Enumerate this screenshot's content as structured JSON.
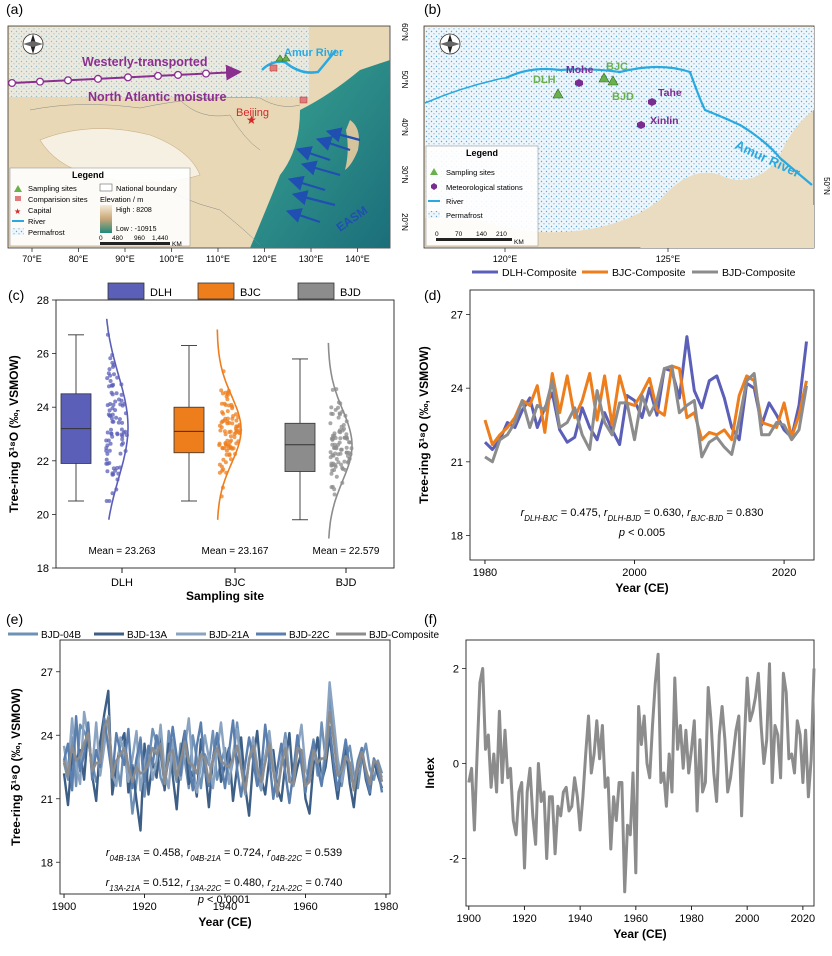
{
  "panels": {
    "a": "(a)",
    "b": "(b)",
    "c": "(c)",
    "d": "(d)",
    "e": "(e)",
    "f": "(f)"
  },
  "map_a": {
    "x_ticks": [
      "70°E",
      "80°E",
      "90°E",
      "100°E",
      "110°E",
      "120°E",
      "130°E",
      "140°E"
    ],
    "y_ticks": [
      "60°N",
      "50°N",
      "40°N",
      "30°N",
      "20°N"
    ],
    "labels": {
      "westerly_1": "Westerly-transported",
      "westerly_2": "North Atlantic moisture",
      "amur": "Amur River",
      "beijing": "Beijing",
      "easm": "EASM"
    },
    "legend": {
      "title": "Legend",
      "items": [
        "Sampling sites",
        "Comparision sites",
        "Capital",
        "River",
        "Permafrost",
        "National boundary"
      ],
      "elevation_title": "Elevation / m",
      "high": "High : 8208",
      "low": "Low : -10915",
      "scale": [
        "0",
        "480",
        "960",
        "1,440"
      ],
      "scale_unit": "KM"
    },
    "colors": {
      "sea": "#2c9a86",
      "land": "#e9d8b6",
      "river": "#29a9e0",
      "westerly": "#8b2f8f",
      "easm": "#1f4fb0"
    }
  },
  "map_b": {
    "x_ticks": [
      "120°E",
      "125°E"
    ],
    "y_ticks": [
      "50°N"
    ],
    "sites": [
      "DLH",
      "BJC",
      "BJD"
    ],
    "stations": [
      "Mohe",
      "Tahe",
      "Xinlin"
    ],
    "amur": "Amur River",
    "legend": {
      "title": "Legend",
      "items": [
        "Sampling sites",
        "Meteorological stations",
        "River",
        "Permafrost"
      ],
      "scale": [
        "0",
        "70",
        "140",
        "210"
      ],
      "scale_unit": "KM"
    }
  },
  "chart_data": [
    {
      "panel": "c",
      "type": "box",
      "categories": [
        "DLH",
        "BJC",
        "BJD"
      ],
      "legend": [
        "DLH",
        "BJC",
        "BJD"
      ],
      "ylabel": "Tree-ring δ¹⁸O (‰, VSMOW)",
      "xlabel": "Sampling site",
      "ylim": [
        18,
        28
      ],
      "y_ticks": [
        18,
        20,
        22,
        24,
        26,
        28
      ],
      "boxes": [
        {
          "min": 20.5,
          "q1": 21.9,
          "median": 23.2,
          "q3": 24.5,
          "max": 26.7,
          "mean": 23.263
        },
        {
          "min": 20.5,
          "q1": 22.3,
          "median": 23.1,
          "q3": 24.0,
          "max": 26.3,
          "mean": 23.167
        },
        {
          "min": 19.8,
          "q1": 21.6,
          "median": 22.6,
          "q3": 23.4,
          "max": 25.8,
          "mean": 22.579
        }
      ],
      "mean_labels": [
        "Mean = 23.263",
        "Mean = 23.167",
        "Mean = 22.579"
      ],
      "colors": [
        "#5b5fb8",
        "#ee7d1c",
        "#8c8c8c"
      ]
    },
    {
      "panel": "d",
      "type": "line",
      "ylabel": "Tree-ring δ¹⁸O (‰, VSMOW)",
      "xlabel": "Year (CE)",
      "xlim": [
        1978,
        2024
      ],
      "ylim": [
        17,
        28
      ],
      "x_ticks": [
        1980,
        2000,
        2020
      ],
      "y_ticks": [
        18,
        21,
        24,
        27
      ],
      "series": [
        {
          "name": "DLH-Composite",
          "color": "#5b5fb8",
          "x_start": 1980,
          "values": [
            21.8,
            21.5,
            21.9,
            22.6,
            22.4,
            23.1,
            23.6,
            22.4,
            23.2,
            23.8,
            22.3,
            21.8,
            22.0,
            23.2,
            22.4,
            21.9,
            23.0,
            22.3,
            21.7,
            23.7,
            23.5,
            22.8,
            24.0,
            22.9,
            24.8,
            24.7,
            23.6,
            26.1,
            23.9,
            23.2,
            24.3,
            24.5,
            23.6,
            22.4,
            21.9,
            24.2,
            24.0,
            22.5,
            23.4,
            22.9,
            22.3,
            22.0,
            23.3,
            25.9
          ]
        },
        {
          "name": "BJC-Composite",
          "color": "#ee7d1c",
          "x_start": 1980,
          "values": [
            22.7,
            21.7,
            22.1,
            22.4,
            22.8,
            23.5,
            23.3,
            24.1,
            22.2,
            24.6,
            23.0,
            24.5,
            22.8,
            23.5,
            24.6,
            22.7,
            24.5,
            22.5,
            24.5,
            23.4,
            23.3,
            23.8,
            24.4,
            23.1,
            22.9,
            24.9,
            24.8,
            22.8,
            23.0,
            21.9,
            22.2,
            22.1,
            22.3,
            21.9,
            23.7,
            24.5,
            24.3,
            22.6,
            22.5,
            22.4,
            23.4,
            22.0,
            22.9,
            24.3
          ]
        },
        {
          "name": "BJD-Composite",
          "color": "#8c8c8c",
          "x_start": 1980,
          "values": [
            21.2,
            21.0,
            21.9,
            22.1,
            22.6,
            23.5,
            22.4,
            23.3,
            23.1,
            24.3,
            22.4,
            22.6,
            23.2,
            22.1,
            21.5,
            23.9,
            22.6,
            22.1,
            23.4,
            23.4,
            21.9,
            23.7,
            22.9,
            23.5,
            24.8,
            24.9,
            23.0,
            23.3,
            23.5,
            21.2,
            21.8,
            22.0,
            21.6,
            21.3,
            22.7,
            24.3,
            24.6,
            22.1,
            22.1,
            22.6,
            22.5,
            21.9,
            22.3,
            24.1
          ]
        }
      ],
      "annotation_r": "rDLH-BJC = 0.475, rDLH-BJD = 0.630, rBJC-BJD = 0.830",
      "annotation_p": "p < 0.005"
    },
    {
      "panel": "e",
      "type": "line",
      "ylabel": "Tree-ring δ¹⁸O (‰, VSMOW)",
      "xlabel": "Year (CE)",
      "xlim": [
        1899,
        1981
      ],
      "ylim": [
        16.5,
        28.5
      ],
      "x_ticks": [
        1900,
        1920,
        1940,
        1960,
        1980
      ],
      "y_ticks": [
        18,
        21,
        24,
        27
      ],
      "series": [
        {
          "name": "BJD-04B",
          "color": "#6f91b6",
          "x_start": 1900,
          "values": [
            22.7,
            21.9,
            23.9,
            21.6,
            24.5,
            24.2,
            23.7,
            22.7,
            21.8,
            22.4,
            24.2,
            24.8,
            22.5,
            22.8,
            21.6,
            23.8,
            22.5,
            20.3,
            21.8,
            23.9,
            21.1,
            22.6,
            24.3,
            23.6,
            22.0,
            21.5,
            24.2,
            22.7,
            21.8,
            23.6,
            22.8,
            21.5,
            24.0,
            22.9,
            21.5,
            23.1,
            22.6,
            24.2,
            21.9,
            22.7,
            23.4,
            21.8,
            22.8,
            24.6,
            23.0,
            21.4,
            22.9,
            23.6,
            22.1,
            21.4,
            23.0,
            23.9,
            22.4,
            21.1,
            22.8,
            24.1,
            22.0,
            21.8,
            23.6,
            22.9,
            21.5,
            22.3,
            23.8,
            22.1,
            24.6,
            22.8,
            25.9,
            24.1,
            22.3,
            21.6,
            22.9,
            23.5,
            22.2,
            21.5,
            22.9,
            23.6,
            22.4,
            21.9,
            22.8,
            22.2
          ]
        },
        {
          "name": "BJD-13A",
          "color": "#3d5f86",
          "x_start": 1900,
          "values": [
            22.2,
            20.7,
            23.1,
            22.8,
            23.3,
            21.9,
            24.4,
            22.1,
            20.9,
            23.7,
            25.0,
            26.1,
            21.2,
            22.5,
            23.6,
            24.1,
            21.3,
            22.6,
            20.9,
            19.5,
            23.6,
            21.2,
            22.8,
            22.0,
            24.2,
            21.4,
            23.6,
            22.1,
            20.5,
            23.1,
            24.2,
            21.7,
            22.3,
            21.1,
            23.8,
            22.5,
            20.6,
            22.9,
            24.0,
            21.8,
            22.6,
            23.4,
            20.9,
            22.5,
            23.9,
            21.6,
            20.2,
            22.8,
            24.2,
            22.0,
            21.2,
            22.9,
            23.3,
            21.5,
            20.9,
            22.7,
            24.1,
            21.6,
            22.5,
            23.2,
            21.0,
            20.3,
            22.6,
            23.9,
            21.8,
            22.5,
            24.0,
            22.3,
            21.0,
            22.5,
            23.4,
            21.7,
            20.6,
            22.4,
            23.3,
            21.9,
            21.2,
            22.8,
            22.1,
            21.5
          ]
        },
        {
          "name": "BJD-21A",
          "color": "#8aa3c0",
          "x_start": 1900,
          "values": [
            23.5,
            22.2,
            24.8,
            22.6,
            21.7,
            25.1,
            23.9,
            22.4,
            24.6,
            22.1,
            23.5,
            24.9,
            22.2,
            21.6,
            23.9,
            23.1,
            21.8,
            22.9,
            24.2,
            21.4,
            22.7,
            23.5,
            21.9,
            22.8,
            24.5,
            22.3,
            21.5,
            23.8,
            22.7,
            21.9,
            23.4,
            24.8,
            22.5,
            21.3,
            22.6,
            24.0,
            22.9,
            21.5,
            23.2,
            24.6,
            22.8,
            21.7,
            23.1,
            24.3,
            22.5,
            21.2,
            22.8,
            23.9,
            22.6,
            21.4,
            22.9,
            24.2,
            22.5,
            21.3,
            22.7,
            23.8,
            22.1,
            21.6,
            23.3,
            24.5,
            22.4,
            21.9,
            23.1,
            22.6,
            21.8,
            23.5,
            26.5,
            24.7,
            22.9,
            21.8,
            23.0,
            22.7,
            21.6,
            22.8,
            23.4,
            22.3,
            21.8,
            22.9,
            22.5,
            22.0
          ]
        },
        {
          "name": "BJD-22C",
          "color": "#5a7fae",
          "x_start": 1900,
          "values": [
            22.8,
            23.6,
            21.4,
            24.9,
            22.3,
            23.1,
            24.6,
            21.9,
            23.3,
            22.5,
            24.8,
            23.4,
            22.0,
            24.1,
            23.2,
            22.6,
            24.3,
            21.5,
            22.9,
            23.8,
            21.8,
            23.5,
            22.6,
            24.0,
            23.1,
            21.7,
            22.9,
            24.4,
            23.0,
            22.1,
            24.2,
            22.8,
            21.4,
            23.5,
            24.6,
            22.3,
            21.6,
            22.9,
            24.1,
            22.8,
            21.5,
            23.2,
            24.7,
            22.4,
            21.1,
            22.6,
            23.9,
            22.8,
            21.6,
            22.3,
            24.5,
            22.9,
            21.0,
            22.4,
            23.6,
            22.2,
            20.8,
            22.3,
            24.0,
            22.6,
            21.3,
            22.8,
            23.7,
            22.5,
            21.6,
            23.0,
            24.4,
            22.7,
            21.4,
            22.6,
            23.8,
            22.4,
            21.5,
            22.7,
            23.4,
            22.1,
            21.3,
            22.9,
            22.4,
            21.3
          ]
        },
        {
          "name": "BJD-Composite",
          "color": "#8c8c8c",
          "x_start": 1900,
          "values": [
            22.8,
            22.1,
            23.5,
            22.8,
            23.0,
            23.6,
            24.1,
            22.3,
            22.7,
            22.7,
            24.4,
            24.8,
            22.0,
            22.8,
            23.1,
            23.4,
            22.5,
            21.8,
            22.5,
            22.2,
            22.3,
            22.7,
            23.4,
            23.1,
            23.6,
            21.7,
            23.1,
            23.3,
            22.0,
            22.8,
            23.7,
            22.7,
            22.6,
            22.2,
            23.1,
            22.9,
            21.8,
            22.9,
            23.4,
            22.8,
            22.6,
            22.5,
            22.9,
            23.5,
            22.5,
            21.3,
            22.8,
            23.5,
            22.4,
            21.8,
            22.7,
            23.6,
            22.3,
            21.2,
            22.5,
            23.4,
            21.8,
            21.7,
            23.4,
            23.3,
            21.6,
            21.8,
            23.3,
            22.7,
            22.9,
            22.9,
            25.1,
            23.8,
            22.1,
            22.3,
            23.0,
            22.7,
            21.4,
            22.5,
            23.2,
            22.4,
            21.7,
            22.8,
            22.7,
            21.8
          ]
        }
      ],
      "annotation_r1": "r04B-13A = 0.458, r04B-21A = 0.724, r04B-22C = 0.539",
      "annotation_r2": "r13A-21A = 0.512, r13A-22C = 0.480, r21A-22C = 0.740",
      "annotation_p": "p < 0.0001"
    },
    {
      "panel": "f",
      "type": "line",
      "ylabel": "Index",
      "xlabel": "Year (CE)",
      "xlim": [
        1899,
        2024
      ],
      "ylim": [
        -3.0,
        2.6
      ],
      "x_ticks": [
        1900,
        1920,
        1940,
        1960,
        1980,
        2000,
        2020
      ],
      "y_ticks": [
        -2,
        0,
        2
      ],
      "series": [
        {
          "name": "Index",
          "color": "#8c8c8c",
          "x_start": 1900,
          "values": [
            -0.4,
            -0.1,
            -1.4,
            0.2,
            1.7,
            2.0,
            0.3,
            0.6,
            -0.5,
            0.2,
            -0.6,
            1.1,
            -0.4,
            0.7,
            -0.3,
            -0.1,
            -1.2,
            -1.5,
            -0.6,
            -0.4,
            -2.2,
            -0.6,
            -0.1,
            -1.1,
            -1.7,
            0.0,
            -0.8,
            -0.6,
            -2.0,
            -0.7,
            -0.7,
            -1.9,
            -0.9,
            -1.1,
            -0.6,
            -0.5,
            -1.0,
            -0.9,
            -0.3,
            -0.7,
            -1.4,
            -0.7,
            0.2,
            1.0,
            -0.2,
            0.2,
            0.9,
            0.1,
            0.8,
            -0.5,
            -0.3,
            -1.8,
            -0.7,
            -1.2,
            -0.4,
            -0.4,
            -2.7,
            -1.3,
            -1.5,
            -0.2,
            -2.3,
            1.2,
            0.4,
            1.0,
            0.0,
            -0.3,
            0.8,
            1.7,
            2.3,
            -0.4,
            -0.2,
            -0.9,
            0.2,
            -0.6,
            1.8,
            0.3,
            0.8,
            -0.1,
            0.7,
            -0.2,
            0.3,
            0.9,
            -1.0,
            0.5,
            -0.6,
            -0.4,
            1.6,
            0.9,
            -0.2,
            -0.8,
            0.6,
            1.2,
            0.5,
            -0.6,
            -0.3,
            0.2,
            0.7,
            1.0,
            -1.1,
            0.5,
            1.8,
            0.9,
            1.1,
            1.4,
            1.9,
            0.8,
            0.0,
            0.5,
            2.1,
            -0.4,
            0.8,
            0.6,
            -0.3,
            1.9,
            1.5,
            0.1,
            0.2,
            -0.2,
            0.9,
            0.6,
            -0.4,
            0.7,
            -0.7,
            0.1,
            2.0
          ]
        }
      ]
    }
  ]
}
